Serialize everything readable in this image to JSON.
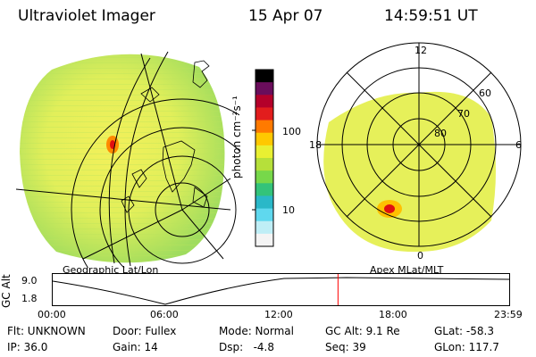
{
  "header": {
    "instrument": "Ultraviolet Imager",
    "date": "15 Apr 07",
    "time": "14:59:51 UT"
  },
  "colorbar": {
    "unit_label": "photon cm⁻²s⁻¹",
    "ticks": [
      "100",
      "10"
    ],
    "colors": [
      "#000000",
      "#6a0d5b",
      "#b4002a",
      "#e21d1d",
      "#ff7a00",
      "#ffc800",
      "#e9f032",
      "#b6e03a",
      "#77d84a",
      "#33c37a",
      "#2ab8c8",
      "#5fd8ee",
      "#bfeef6",
      "#f4f4f4"
    ]
  },
  "left_panel": {
    "caption": "Geographic Lat/Lon"
  },
  "right_panel": {
    "caption": "Apex MLat/MLT",
    "mlt_labels": {
      "top": "12",
      "left": "18",
      "right": "6",
      "bottom": "0"
    },
    "lat_labels": [
      "60",
      "70",
      "80"
    ]
  },
  "timeline": {
    "axis_title": "GC Alt",
    "y_ticks": [
      "9.0",
      "1.8"
    ],
    "x_ticks": [
      "00:00",
      "06:00",
      "12:00",
      "18:00",
      "23:59"
    ],
    "current_time_hours": 15.0,
    "marker_color": "#ff0000"
  },
  "info": {
    "flt": "Flt: UNKNOWN",
    "ip": "IP: 36.0",
    "door": "Door: Fullex",
    "gain": "Gain: 14",
    "mode": "Mode: Normal",
    "dsp": "Dsp:   -4.8",
    "gc_alt": "GC Alt: 9.1 Re",
    "seq": "Seq: 39",
    "glat": "GLat: -58.3",
    "glon": "GLon: 117.7"
  }
}
